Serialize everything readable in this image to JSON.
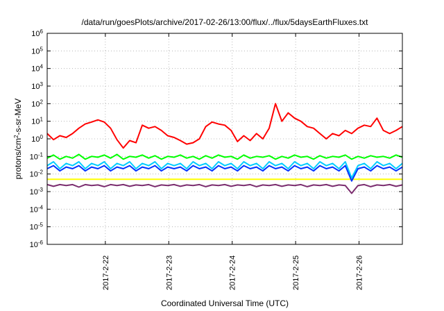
{
  "chart_data": {
    "type": "line",
    "title": "/data/run/goesPlots/archive/2017-02-26/13:00/flux/../flux/5daysEarthFluxes.txt",
    "xlabel": "Coordinated Universal Time (UTC)",
    "ylabel": "protons/cm2-s-sr-MeV",
    "ylabel_parts": {
      "pre": "protons/cm",
      "sup": "2",
      "post": "-s-sr-MeV"
    },
    "y_scale": "log",
    "ylim": [
      "1e-6",
      "1e6"
    ],
    "y_ticks": [
      {
        "base": "10",
        "exp": "6"
      },
      {
        "base": "10",
        "exp": "5"
      },
      {
        "base": "10",
        "exp": "4"
      },
      {
        "base": "10",
        "exp": "3"
      },
      {
        "base": "10",
        "exp": "2"
      },
      {
        "base": "10",
        "exp": "1"
      },
      {
        "base": "10",
        "exp": "0"
      },
      {
        "base": "10",
        "exp": "-1"
      },
      {
        "base": "10",
        "exp": "-2"
      },
      {
        "base": "10",
        "exp": "-3"
      },
      {
        "base": "10",
        "exp": "-4"
      },
      {
        "base": "10",
        "exp": "-5"
      },
      {
        "base": "10",
        "exp": "-6"
      }
    ],
    "xlim": [
      "2017-02-21 02:00",
      "2017-02-26 13:00"
    ],
    "x_ticks": [
      "2017-2-22",
      "2017-2-23",
      "2017-2-24",
      "2017-2-25",
      "2017-2-26"
    ],
    "grid": true,
    "series": [
      {
        "color": "#ff0000",
        "x_days": [
          0.0,
          0.1,
          0.2,
          0.3,
          0.4,
          0.5,
          0.6,
          0.7,
          0.8,
          0.9,
          1.0,
          1.1,
          1.2,
          1.3,
          1.4,
          1.5,
          1.6,
          1.7,
          1.8,
          1.9,
          2.0,
          2.1,
          2.2,
          2.3,
          2.4,
          2.5,
          2.6,
          2.7,
          2.8,
          2.9,
          3.0,
          3.1,
          3.2,
          3.3,
          3.4,
          3.5,
          3.6,
          3.7,
          3.8,
          3.9,
          4.0,
          4.1,
          4.2,
          4.3,
          4.4,
          4.5,
          4.6,
          4.7,
          4.8,
          4.9,
          5.0,
          5.1,
          5.2,
          5.3,
          5.4,
          5.5,
          5.6
        ],
        "values": [
          2,
          0.9,
          1.5,
          1.2,
          2,
          4,
          7,
          9,
          12,
          9,
          4,
          0.9,
          0.3,
          0.8,
          0.6,
          6,
          4,
          5,
          3,
          1.5,
          1.2,
          0.8,
          0.5,
          0.6,
          1,
          5,
          9,
          7,
          6,
          3,
          0.7,
          1.5,
          0.8,
          2,
          1,
          4,
          100,
          10,
          30,
          15,
          10,
          5,
          4,
          2,
          1,
          2,
          1.5,
          3,
          2,
          4,
          6,
          5,
          15,
          3,
          2,
          3,
          5
        ]
      },
      {
        "color": "#00ff00",
        "x_days": [
          0.0,
          0.1,
          0.2,
          0.3,
          0.4,
          0.5,
          0.6,
          0.7,
          0.8,
          0.9,
          1.0,
          1.1,
          1.2,
          1.3,
          1.4,
          1.5,
          1.6,
          1.7,
          1.8,
          1.9,
          2.0,
          2.1,
          2.2,
          2.3,
          2.4,
          2.5,
          2.6,
          2.7,
          2.8,
          2.9,
          3.0,
          3.1,
          3.2,
          3.3,
          3.4,
          3.5,
          3.6,
          3.7,
          3.8,
          3.9,
          4.0,
          4.1,
          4.2,
          4.3,
          4.4,
          4.5,
          4.6,
          4.7,
          4.8,
          4.9,
          5.0,
          5.1,
          5.2,
          5.3,
          5.4,
          5.5,
          5.6
        ],
        "values": [
          0.08,
          0.12,
          0.07,
          0.1,
          0.08,
          0.13,
          0.07,
          0.1,
          0.09,
          0.12,
          0.08,
          0.13,
          0.07,
          0.1,
          0.09,
          0.12,
          0.08,
          0.11,
          0.07,
          0.1,
          0.09,
          0.12,
          0.08,
          0.1,
          0.07,
          0.11,
          0.08,
          0.12,
          0.09,
          0.1,
          0.07,
          0.12,
          0.08,
          0.1,
          0.09,
          0.11,
          0.07,
          0.1,
          0.08,
          0.12,
          0.09,
          0.1,
          0.07,
          0.11,
          0.08,
          0.1,
          0.09,
          0.12,
          0.07,
          0.1,
          0.08,
          0.11,
          0.09,
          0.1,
          0.08,
          0.12,
          0.09
        ]
      },
      {
        "color": "#00ccff",
        "x_days": [
          0.0,
          0.1,
          0.2,
          0.3,
          0.4,
          0.5,
          0.6,
          0.7,
          0.8,
          0.9,
          1.0,
          1.1,
          1.2,
          1.3,
          1.4,
          1.5,
          1.6,
          1.7,
          1.8,
          1.9,
          2.0,
          2.1,
          2.2,
          2.3,
          2.4,
          2.5,
          2.6,
          2.7,
          2.8,
          2.9,
          3.0,
          3.1,
          3.2,
          3.3,
          3.4,
          3.5,
          3.6,
          3.7,
          3.8,
          3.9,
          4.0,
          4.1,
          4.2,
          4.3,
          4.4,
          4.5,
          4.6,
          4.7,
          4.8,
          4.9,
          5.0,
          5.1,
          5.2,
          5.3,
          5.4,
          5.5,
          5.6
        ],
        "values": [
          0.03,
          0.05,
          0.02,
          0.04,
          0.03,
          0.05,
          0.02,
          0.04,
          0.03,
          0.05,
          0.02,
          0.04,
          0.03,
          0.05,
          0.02,
          0.04,
          0.03,
          0.05,
          0.02,
          0.04,
          0.03,
          0.04,
          0.02,
          0.05,
          0.03,
          0.04,
          0.02,
          0.05,
          0.03,
          0.04,
          0.02,
          0.05,
          0.03,
          0.04,
          0.02,
          0.05,
          0.03,
          0.04,
          0.02,
          0.05,
          0.03,
          0.04,
          0.02,
          0.05,
          0.03,
          0.04,
          0.02,
          0.05,
          0.006,
          0.03,
          0.04,
          0.02,
          0.05,
          0.03,
          0.04,
          0.02,
          0.04
        ]
      },
      {
        "color": "#0033ff",
        "x_days": [
          0.0,
          0.1,
          0.2,
          0.3,
          0.4,
          0.5,
          0.6,
          0.7,
          0.8,
          0.9,
          1.0,
          1.1,
          1.2,
          1.3,
          1.4,
          1.5,
          1.6,
          1.7,
          1.8,
          1.9,
          2.0,
          2.1,
          2.2,
          2.3,
          2.4,
          2.5,
          2.6,
          2.7,
          2.8,
          2.9,
          3.0,
          3.1,
          3.2,
          3.3,
          3.4,
          3.5,
          3.6,
          3.7,
          3.8,
          3.9,
          4.0,
          4.1,
          4.2,
          4.3,
          4.4,
          4.5,
          4.6,
          4.7,
          4.8,
          4.9,
          5.0,
          5.1,
          5.2,
          5.3,
          5.4,
          5.5,
          5.6
        ],
        "values": [
          0.02,
          0.03,
          0.015,
          0.025,
          0.02,
          0.03,
          0.015,
          0.025,
          0.02,
          0.03,
          0.015,
          0.025,
          0.02,
          0.03,
          0.015,
          0.025,
          0.02,
          0.03,
          0.015,
          0.025,
          0.02,
          0.025,
          0.015,
          0.03,
          0.02,
          0.025,
          0.015,
          0.03,
          0.02,
          0.025,
          0.015,
          0.03,
          0.02,
          0.025,
          0.015,
          0.03,
          0.02,
          0.025,
          0.015,
          0.03,
          0.02,
          0.025,
          0.015,
          0.03,
          0.02,
          0.025,
          0.015,
          0.03,
          0.004,
          0.02,
          0.025,
          0.015,
          0.03,
          0.02,
          0.025,
          0.015,
          0.025
        ]
      },
      {
        "color": "#ffff00",
        "x_days": [
          0.0,
          0.5,
          1.0,
          1.5,
          2.0,
          2.5,
          3.0,
          3.5,
          4.0,
          4.5,
          5.0,
          5.6
        ],
        "values": [
          0.005,
          0.005,
          0.005,
          0.005,
          0.005,
          0.005,
          0.005,
          0.005,
          0.005,
          0.005,
          0.005,
          0.005
        ]
      },
      {
        "color": "#7b2d6e",
        "x_days": [
          0.0,
          0.1,
          0.2,
          0.3,
          0.4,
          0.5,
          0.6,
          0.7,
          0.8,
          0.9,
          1.0,
          1.1,
          1.2,
          1.3,
          1.4,
          1.5,
          1.6,
          1.7,
          1.8,
          1.9,
          2.0,
          2.1,
          2.2,
          2.3,
          2.4,
          2.5,
          2.6,
          2.7,
          2.8,
          2.9,
          3.0,
          3.1,
          3.2,
          3.3,
          3.4,
          3.5,
          3.6,
          3.7,
          3.8,
          3.9,
          4.0,
          4.1,
          4.2,
          4.3,
          4.4,
          4.5,
          4.6,
          4.7,
          4.8,
          4.9,
          5.0,
          5.1,
          5.2,
          5.3,
          5.4,
          5.5,
          5.6
        ],
        "values": [
          0.0025,
          0.002,
          0.0025,
          0.0022,
          0.0025,
          0.0018,
          0.0025,
          0.0022,
          0.0024,
          0.0019,
          0.0025,
          0.0022,
          0.0025,
          0.002,
          0.0024,
          0.0022,
          0.0025,
          0.0019,
          0.0024,
          0.0022,
          0.0025,
          0.002,
          0.0024,
          0.0022,
          0.0025,
          0.0019,
          0.0024,
          0.0022,
          0.0025,
          0.002,
          0.0024,
          0.0022,
          0.0025,
          0.0019,
          0.0024,
          0.0022,
          0.0025,
          0.002,
          0.0024,
          0.0022,
          0.0025,
          0.0019,
          0.0024,
          0.0022,
          0.0025,
          0.002,
          0.0024,
          0.0022,
          0.0008,
          0.0022,
          0.0025,
          0.0019,
          0.0024,
          0.0022,
          0.0025,
          0.002,
          0.0024
        ]
      }
    ]
  }
}
